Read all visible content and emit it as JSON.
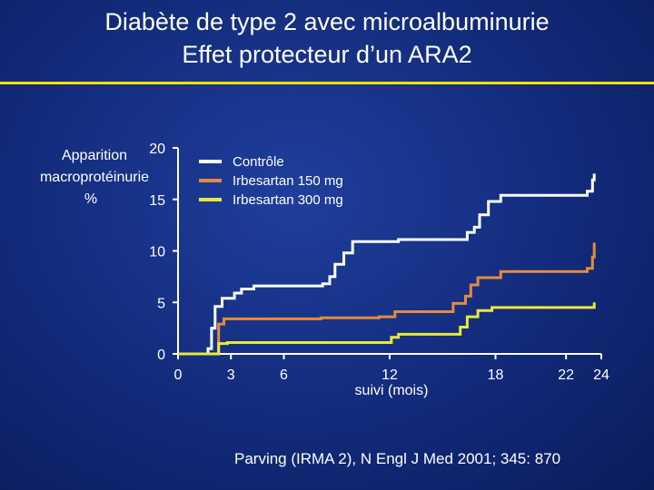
{
  "title": {
    "line1": "Diabète de type 2 avec microalbuminurie",
    "line2": "Effet protecteur d’un ARA2"
  },
  "citation": "Parving  (IRMA 2), N Engl J Med 2001; 345: 870",
  "colors": {
    "background": "#14307f",
    "accent_rule": "#f2e200",
    "axis": "#ffffff"
  },
  "chart_data": {
    "type": "line",
    "step": true,
    "ylabel_lines": [
      "Apparition",
      "macroprotéinurie",
      "%"
    ],
    "xlabel": "suivi (mois)",
    "ylim": [
      0,
      20
    ],
    "xlim": [
      0,
      24
    ],
    "y_ticks": [
      0,
      5,
      10,
      15,
      20
    ],
    "x_ticks": [
      0,
      3,
      6,
      12,
      18,
      22,
      24
    ],
    "grid": false,
    "legend_position": "top-center",
    "series": [
      {
        "name": "Contrôle",
        "color": "#ffffff",
        "points": [
          [
            0,
            0
          ],
          [
            1.4,
            0
          ],
          [
            1.7,
            0.5
          ],
          [
            1.9,
            2.5
          ],
          [
            2.1,
            4.6
          ],
          [
            2.5,
            5.4
          ],
          [
            3.2,
            5.9
          ],
          [
            3.6,
            6.3
          ],
          [
            4.3,
            6.6
          ],
          [
            7,
            6.6
          ],
          [
            8.2,
            6.8
          ],
          [
            8.6,
            7.5
          ],
          [
            8.9,
            8.7
          ],
          [
            9.4,
            9.8
          ],
          [
            9.9,
            10.9
          ],
          [
            11.4,
            10.9
          ],
          [
            12.5,
            11.1
          ],
          [
            15.5,
            11.1
          ],
          [
            16.4,
            11.8
          ],
          [
            16.8,
            12.3
          ],
          [
            17.1,
            13.5
          ],
          [
            17.6,
            14.8
          ],
          [
            18.3,
            15.4
          ],
          [
            22.8,
            15.4
          ],
          [
            23.2,
            15.8
          ],
          [
            23.5,
            16.9
          ],
          [
            23.6,
            17.5
          ]
        ]
      },
      {
        "name": "Irbesartan 150 mg",
        "color": "#e88a3a",
        "points": [
          [
            0,
            0
          ],
          [
            2,
            0
          ],
          [
            2.3,
            2.9
          ],
          [
            2.6,
            3.4
          ],
          [
            3.4,
            3.4
          ],
          [
            6,
            3.4
          ],
          [
            8.1,
            3.5
          ],
          [
            10.5,
            3.5
          ],
          [
            11.4,
            3.6
          ],
          [
            12.3,
            4.1
          ],
          [
            15,
            4.1
          ],
          [
            15.6,
            4.9
          ],
          [
            16.3,
            5.6
          ],
          [
            16.6,
            6.7
          ],
          [
            17,
            7.4
          ],
          [
            18.3,
            8
          ],
          [
            22.6,
            8
          ],
          [
            23.2,
            8.3
          ],
          [
            23.5,
            9.4
          ],
          [
            23.6,
            10.8
          ]
        ]
      },
      {
        "name": "Irbesartan 300 mg",
        "color": "#e8e83a",
        "points": [
          [
            0,
            0
          ],
          [
            1.9,
            0
          ],
          [
            2.3,
            1.0
          ],
          [
            2.8,
            1.1
          ],
          [
            11.5,
            1.1
          ],
          [
            12.1,
            1.6
          ],
          [
            12.5,
            1.9
          ],
          [
            15.6,
            1.9
          ],
          [
            16,
            2.6
          ],
          [
            16.4,
            3.6
          ],
          [
            17,
            4.2
          ],
          [
            17.8,
            4.5
          ],
          [
            23.6,
            4.5
          ],
          [
            23.6,
            5.0
          ]
        ]
      }
    ]
  }
}
